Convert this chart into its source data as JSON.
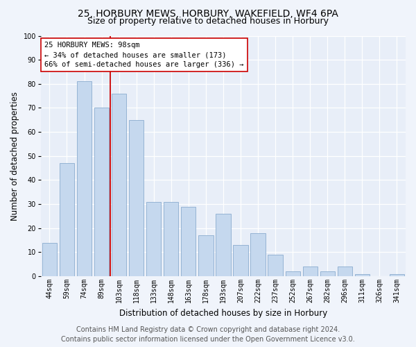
{
  "title1": "25, HORBURY MEWS, HORBURY, WAKEFIELD, WF4 6PA",
  "title2": "Size of property relative to detached houses in Horbury",
  "xlabel": "Distribution of detached houses by size in Horbury",
  "ylabel": "Number of detached properties",
  "categories": [
    "44sqm",
    "59sqm",
    "74sqm",
    "89sqm",
    "103sqm",
    "118sqm",
    "133sqm",
    "148sqm",
    "163sqm",
    "178sqm",
    "193sqm",
    "207sqm",
    "222sqm",
    "237sqm",
    "252sqm",
    "267sqm",
    "282sqm",
    "296sqm",
    "311sqm",
    "326sqm",
    "341sqm"
  ],
  "values": [
    14,
    47,
    81,
    70,
    76,
    65,
    31,
    31,
    29,
    17,
    26,
    13,
    18,
    9,
    2,
    4,
    2,
    4,
    1,
    0,
    1
  ],
  "bar_color": "#c5d8ee",
  "bar_edge_color": "#8aaccf",
  "vline_color": "#cc0000",
  "vline_x_index": 4,
  "ylim": [
    0,
    100
  ],
  "yticks": [
    0,
    10,
    20,
    30,
    40,
    50,
    60,
    70,
    80,
    90,
    100
  ],
  "annotation_line1": "25 HORBURY MEWS: 98sqm",
  "annotation_line2": "← 34% of detached houses are smaller (173)",
  "annotation_line3": "66% of semi-detached houses are larger (336) →",
  "annotation_box_facecolor": "#ffffff",
  "annotation_box_edgecolor": "#cc0000",
  "footer1": "Contains HM Land Registry data © Crown copyright and database right 2024.",
  "footer2": "Contains public sector information licensed under the Open Government Licence v3.0.",
  "fig_facecolor": "#f0f4fb",
  "ax_facecolor": "#e8eef8",
  "grid_color": "#ffffff",
  "title1_fontsize": 10,
  "title2_fontsize": 9,
  "ylabel_fontsize": 8.5,
  "xlabel_fontsize": 8.5,
  "tick_fontsize": 7,
  "annotation_fontsize": 7.5,
  "footer_fontsize": 7
}
